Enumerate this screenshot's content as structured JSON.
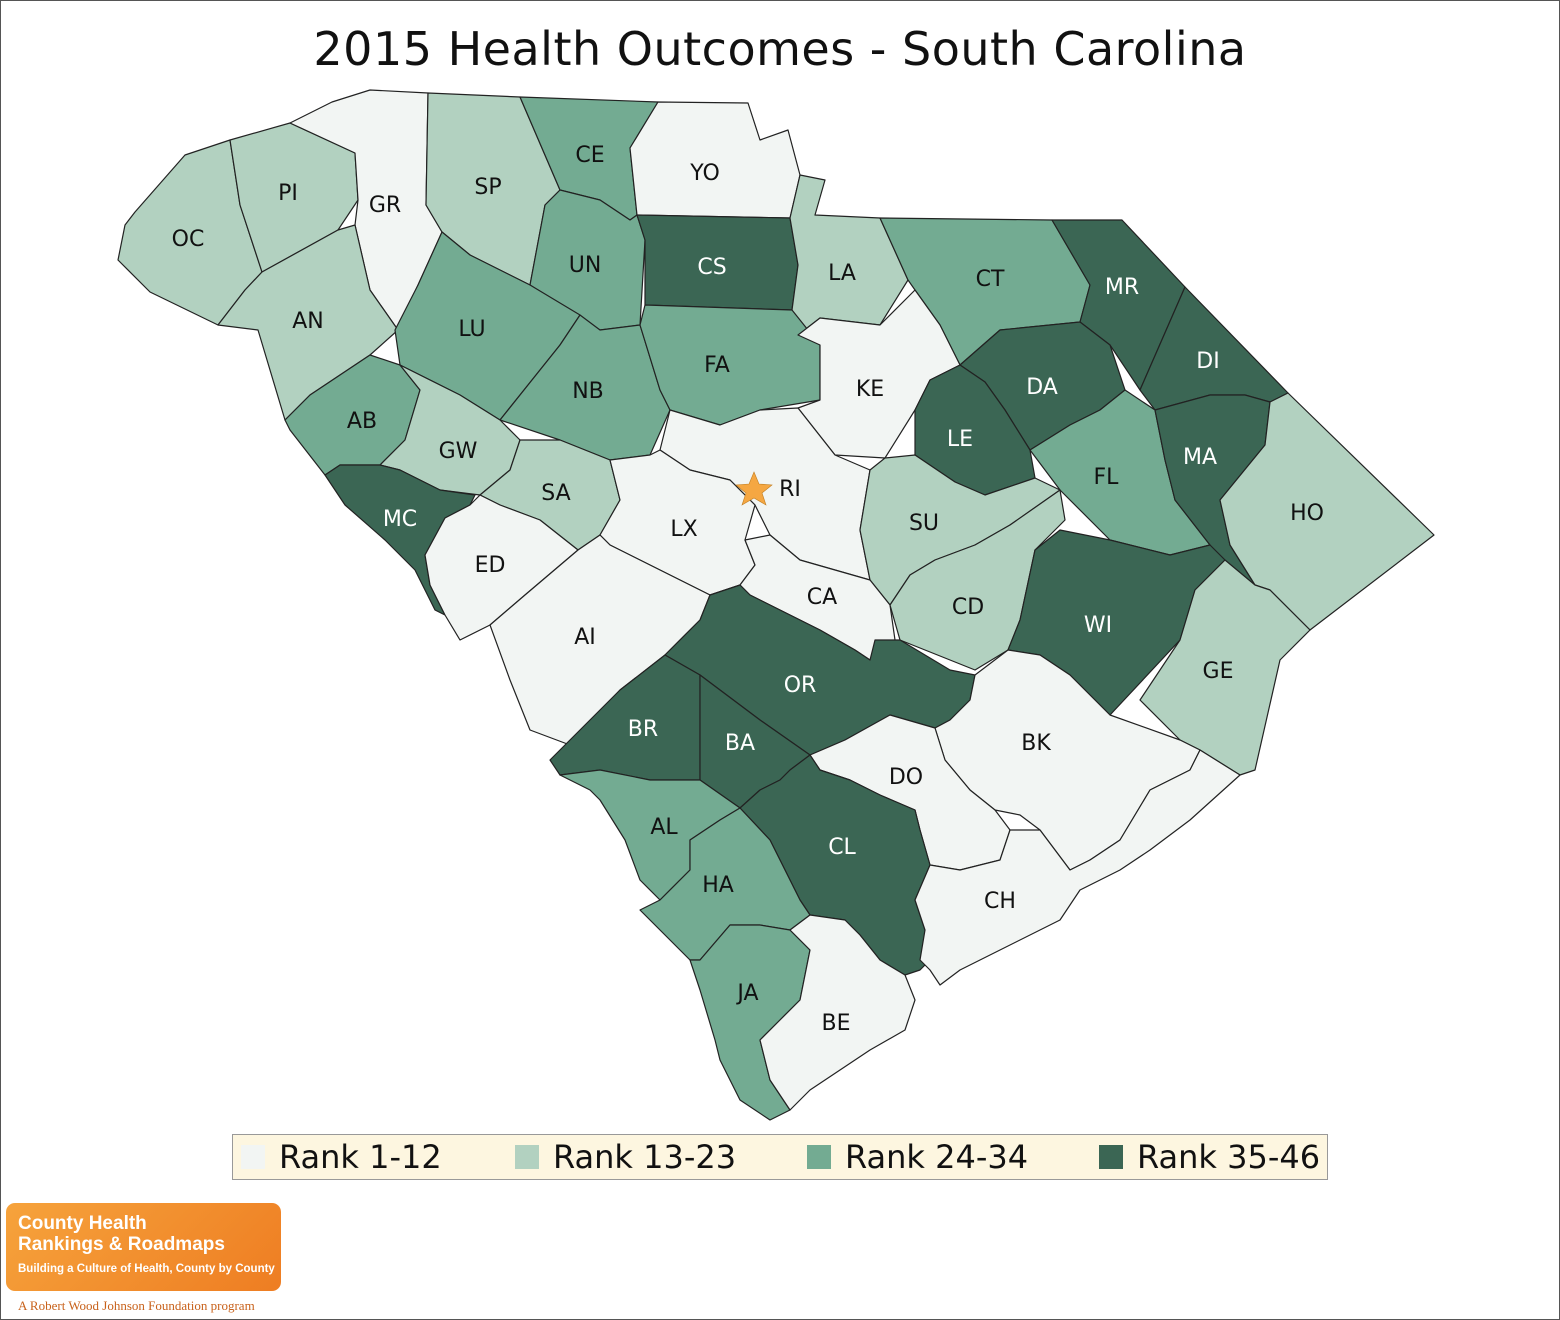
{
  "title": "2015 Health Outcomes - South Carolina",
  "colors": {
    "rank_1_12": "#f2f5f3",
    "rank_13_23": "#b2d1c0",
    "rank_24_34": "#73ab92",
    "rank_35_46": "#3b6654",
    "capital_star": "#f5a742",
    "logo_orange": "#f08a2a"
  },
  "legend": [
    {
      "label": "Rank 1-12",
      "color_key": "rank_1_12"
    },
    {
      "label": "Rank 13-23",
      "color_key": "rank_13_23"
    },
    {
      "label": "Rank 24-34",
      "color_key": "rank_24_34"
    },
    {
      "label": "Rank 35-46",
      "color_key": "rank_35_46"
    }
  ],
  "counties": [
    {
      "code": "OC",
      "tier": 2
    },
    {
      "code": "PI",
      "tier": 2
    },
    {
      "code": "GR",
      "tier": 1
    },
    {
      "code": "SP",
      "tier": 2
    },
    {
      "code": "CE",
      "tier": 3
    },
    {
      "code": "YO",
      "tier": 1
    },
    {
      "code": "AN",
      "tier": 2
    },
    {
      "code": "UN",
      "tier": 3
    },
    {
      "code": "CS",
      "tier": 4
    },
    {
      "code": "LA",
      "tier": 2
    },
    {
      "code": "CT",
      "tier": 3
    },
    {
      "code": "MR",
      "tier": 4
    },
    {
      "code": "LU",
      "tier": 3
    },
    {
      "code": "NB",
      "tier": 3
    },
    {
      "code": "FA",
      "tier": 3
    },
    {
      "code": "KE",
      "tier": 1
    },
    {
      "code": "DA",
      "tier": 4
    },
    {
      "code": "DI",
      "tier": 4
    },
    {
      "code": "AB",
      "tier": 3
    },
    {
      "code": "GW",
      "tier": 2
    },
    {
      "code": "SA",
      "tier": 2
    },
    {
      "code": "RI",
      "tier": 1
    },
    {
      "code": "LE",
      "tier": 4
    },
    {
      "code": "FL",
      "tier": 3
    },
    {
      "code": "MA",
      "tier": 4
    },
    {
      "code": "HO",
      "tier": 2
    },
    {
      "code": "MC",
      "tier": 4
    },
    {
      "code": "ED",
      "tier": 1
    },
    {
      "code": "LX",
      "tier": 1
    },
    {
      "code": "SU",
      "tier": 2
    },
    {
      "code": "CA",
      "tier": 1
    },
    {
      "code": "CD",
      "tier": 2
    },
    {
      "code": "WI",
      "tier": 4
    },
    {
      "code": "AI",
      "tier": 1
    },
    {
      "code": "OR",
      "tier": 4
    },
    {
      "code": "GE",
      "tier": 2
    },
    {
      "code": "BR",
      "tier": 4
    },
    {
      "code": "BA",
      "tier": 4
    },
    {
      "code": "BK",
      "tier": 1
    },
    {
      "code": "DO",
      "tier": 1
    },
    {
      "code": "AL",
      "tier": 3
    },
    {
      "code": "CL",
      "tier": 4
    },
    {
      "code": "HA",
      "tier": 3
    },
    {
      "code": "CH",
      "tier": 1
    },
    {
      "code": "JA",
      "tier": 3
    },
    {
      "code": "BE",
      "tier": 1
    }
  ],
  "capital_icon": "star-icon",
  "logo": {
    "line1": "County Health",
    "line2": "Rankings & Roadmaps",
    "tagline": "Building a Culture of Health, County by County",
    "footer": "A Robert Wood Johnson Foundation program"
  }
}
